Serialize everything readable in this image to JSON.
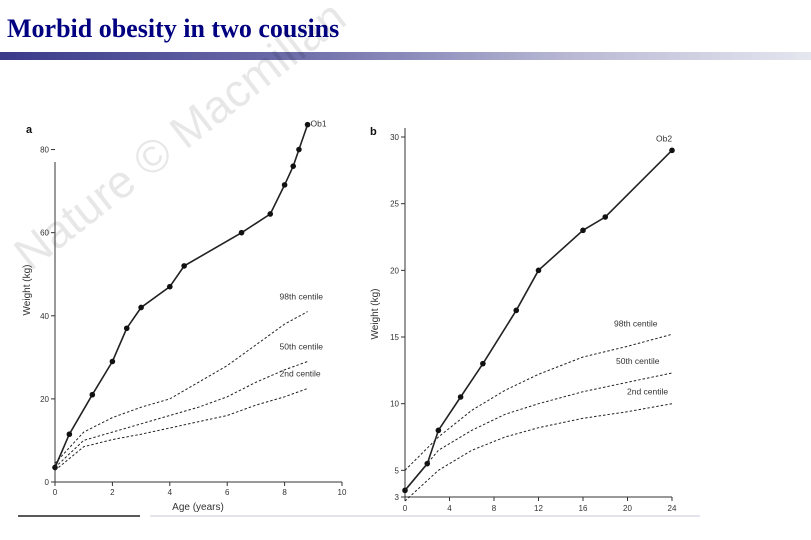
{
  "slide": {
    "title": "Morbid obesity in two cousins"
  },
  "watermark": "Nature © Macmillan",
  "colors": {
    "title": "#000080",
    "line": "#222222"
  },
  "chart_data": [
    {
      "type": "line",
      "panel_label": "a",
      "xlabel": "Age (years)",
      "ylabel": "Weight (kg)",
      "xlim": [
        0,
        10
      ],
      "ylim": [
        0,
        90
      ],
      "xticks": [
        0,
        2,
        4,
        6,
        8,
        10
      ],
      "yticks": [
        0,
        20,
        40,
        60,
        80
      ],
      "series": [
        {
          "name": "Ob1",
          "style": "solid",
          "markers": true,
          "points": [
            [
              0,
              3.5
            ],
            [
              0.5,
              11.5
            ],
            [
              1.3,
              21
            ],
            [
              2,
              29
            ],
            [
              2.5,
              37
            ],
            [
              3,
              42
            ],
            [
              4,
              47
            ],
            [
              4.5,
              52
            ],
            [
              6.5,
              60
            ],
            [
              7.5,
              64.5
            ],
            [
              8,
              71.5
            ],
            [
              8.3,
              76
            ],
            [
              8.5,
              80
            ],
            [
              8.8,
              86
            ]
          ]
        },
        {
          "name": "98th centile",
          "style": "dashed",
          "markers": false,
          "points": [
            [
              0,
              4.5
            ],
            [
              1,
              12
            ],
            [
              2,
              15.5
            ],
            [
              3,
              18
            ],
            [
              4,
              20
            ],
            [
              5,
              24
            ],
            [
              6,
              28
            ],
            [
              7,
              33
            ],
            [
              8,
              38
            ],
            [
              8.8,
              41
            ]
          ]
        },
        {
          "name": "50th centile",
          "style": "dashed",
          "markers": false,
          "points": [
            [
              0,
              3.5
            ],
            [
              1,
              10
            ],
            [
              2,
              12
            ],
            [
              3,
              14
            ],
            [
              4,
              16
            ],
            [
              5,
              18
            ],
            [
              6,
              20.5
            ],
            [
              7,
              24
            ],
            [
              8,
              27
            ],
            [
              8.8,
              29
            ]
          ]
        },
        {
          "name": "2nd centile",
          "style": "dashed",
          "markers": false,
          "points": [
            [
              0,
              2.8
            ],
            [
              1,
              8.5
            ],
            [
              2,
              10.2
            ],
            [
              3,
              11.5
            ],
            [
              4,
              13
            ],
            [
              5,
              14.5
            ],
            [
              6,
              16
            ],
            [
              7,
              18.5
            ],
            [
              8,
              20.5
            ],
            [
              8.8,
              22.5
            ]
          ]
        }
      ]
    },
    {
      "type": "line",
      "panel_label": "b",
      "xlabel": "",
      "ylabel": "Weight (kg)",
      "xlim": [
        0,
        24
      ],
      "ylim": [
        3,
        30
      ],
      "xticks": [
        0,
        4,
        8,
        12,
        16,
        20,
        24
      ],
      "yticks": [
        3,
        5,
        10,
        15,
        20,
        25,
        30
      ],
      "series": [
        {
          "name": "Ob2",
          "style": "solid",
          "markers": true,
          "points": [
            [
              0,
              3.5
            ],
            [
              2,
              5.5
            ],
            [
              3,
              8
            ],
            [
              5,
              10.5
            ],
            [
              7,
              13
            ],
            [
              10,
              17
            ],
            [
              12,
              20
            ],
            [
              16,
              23
            ],
            [
              18,
              24
            ],
            [
              24,
              29
            ]
          ]
        },
        {
          "name": "98th centile",
          "style": "dashed",
          "markers": false,
          "points": [
            [
              0,
              5
            ],
            [
              3,
              7.5
            ],
            [
              6,
              9.5
            ],
            [
              9,
              11
            ],
            [
              12,
              12.2
            ],
            [
              16,
              13.5
            ],
            [
              20,
              14.3
            ],
            [
              24,
              15.2
            ]
          ]
        },
        {
          "name": "50th centile",
          "style": "dashed",
          "markers": false,
          "points": [
            [
              0,
              3.5
            ],
            [
              3,
              6.5
            ],
            [
              6,
              8
            ],
            [
              9,
              9.2
            ],
            [
              12,
              10
            ],
            [
              16,
              10.9
            ],
            [
              20,
              11.6
            ],
            [
              24,
              12.3
            ]
          ]
        },
        {
          "name": "2nd centile",
          "style": "dashed",
          "markers": false,
          "points": [
            [
              0,
              2.7
            ],
            [
              3,
              5
            ],
            [
              6,
              6.5
            ],
            [
              9,
              7.5
            ],
            [
              12,
              8.2
            ],
            [
              16,
              8.9
            ],
            [
              20,
              9.4
            ],
            [
              24,
              10
            ]
          ]
        }
      ]
    }
  ]
}
